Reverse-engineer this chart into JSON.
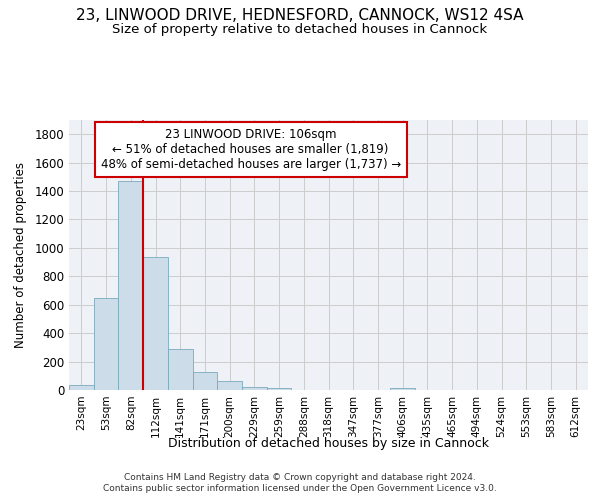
{
  "title": "23, LINWOOD DRIVE, HEDNESFORD, CANNOCK, WS12 4SA",
  "subtitle": "Size of property relative to detached houses in Cannock",
  "xlabel": "Distribution of detached houses by size in Cannock",
  "ylabel": "Number of detached properties",
  "bar_color": "#ccdce8",
  "bar_edge_color": "#7aaabf",
  "categories": [
    "23sqm",
    "53sqm",
    "82sqm",
    "112sqm",
    "141sqm",
    "171sqm",
    "200sqm",
    "229sqm",
    "259sqm",
    "288sqm",
    "318sqm",
    "347sqm",
    "377sqm",
    "406sqm",
    "435sqm",
    "465sqm",
    "494sqm",
    "524sqm",
    "553sqm",
    "583sqm",
    "612sqm"
  ],
  "values": [
    38,
    650,
    1470,
    935,
    290,
    128,
    62,
    22,
    12,
    0,
    0,
    0,
    0,
    12,
    0,
    0,
    0,
    0,
    0,
    0,
    0
  ],
  "ylim": [
    0,
    1900
  ],
  "yticks": [
    0,
    200,
    400,
    600,
    800,
    1000,
    1200,
    1400,
    1600,
    1800
  ],
  "vline_color": "#cc0000",
  "annotation_line1": "23 LINWOOD DRIVE: 106sqm",
  "annotation_line2": "← 51% of detached houses are smaller (1,819)",
  "annotation_line3": "48% of semi-detached houses are larger (1,737) →",
  "annotation_box_color": "#ffffff",
  "annotation_box_edge": "#cc0000",
  "footer_line1": "Contains HM Land Registry data © Crown copyright and database right 2024.",
  "footer_line2": "Contains public sector information licensed under the Open Government Licence v3.0.",
  "background_color": "#eef2f7",
  "grid_color": "#cccccc",
  "title_fontsize": 11,
  "subtitle_fontsize": 9.5
}
